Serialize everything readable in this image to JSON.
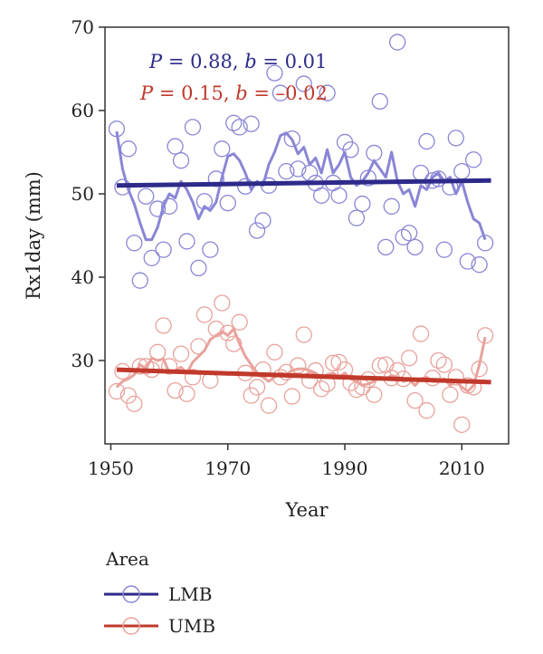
{
  "chart_data": {
    "type": "scatter",
    "xlabel": "Year",
    "ylabel": "Rx1day (mm)",
    "xlim": [
      1949,
      2018
    ],
    "ylim": [
      20,
      70
    ],
    "xticks": [
      1950,
      1970,
      1990,
      2010
    ],
    "yticks": [
      30,
      40,
      50,
      60,
      70
    ],
    "grid": false,
    "legend": {
      "title": "Area",
      "position": "bottom-left"
    },
    "annotations": [
      {
        "text": "P = 0.88, b = 0.01",
        "color": "#2d2a8a"
      },
      {
        "text": "P = 0.15, b = –0.02",
        "color": "#c0392b"
      }
    ],
    "series": [
      {
        "name": "LMB",
        "color": "#2d2a8a",
        "point_color": "#8a86d6",
        "points": [
          [
            1951,
            57.8
          ],
          [
            1952,
            50.8
          ],
          [
            1953,
            55.4
          ],
          [
            1954,
            44.1
          ],
          [
            1955,
            39.6
          ],
          [
            1956,
            49.7
          ],
          [
            1957,
            42.3
          ],
          [
            1958,
            48.2
          ],
          [
            1959,
            43.3
          ],
          [
            1960,
            48.5
          ],
          [
            1961,
            55.7
          ],
          [
            1962,
            54.0
          ],
          [
            1963,
            44.3
          ],
          [
            1964,
            58.0
          ],
          [
            1965,
            41.1
          ],
          [
            1966,
            49.1
          ],
          [
            1967,
            43.3
          ],
          [
            1968,
            51.8
          ],
          [
            1969,
            55.4
          ],
          [
            1970,
            48.9
          ],
          [
            1971,
            58.5
          ],
          [
            1972,
            58.0
          ],
          [
            1973,
            50.9
          ],
          [
            1974,
            58.4
          ],
          [
            1975,
            45.6
          ],
          [
            1976,
            46.8
          ],
          [
            1977,
            51.0
          ],
          [
            1978,
            64.5
          ],
          [
            1979,
            62.1
          ],
          [
            1980,
            52.7
          ],
          [
            1981,
            56.6
          ],
          [
            1982,
            53.0
          ],
          [
            1983,
            63.2
          ],
          [
            1984,
            52.5
          ],
          [
            1985,
            51.3
          ],
          [
            1986,
            49.8
          ],
          [
            1987,
            62.1
          ],
          [
            1988,
            51.3
          ],
          [
            1989,
            49.8
          ],
          [
            1990,
            56.2
          ],
          [
            1991,
            55.3
          ],
          [
            1992,
            47.1
          ],
          [
            1993,
            48.8
          ],
          [
            1994,
            51.9
          ],
          [
            1995,
            54.9
          ],
          [
            1996,
            61.1
          ],
          [
            1997,
            43.6
          ],
          [
            1998,
            48.5
          ],
          [
            1999,
            68.2
          ],
          [
            2000,
            44.8
          ],
          [
            2001,
            45.3
          ],
          [
            2002,
            43.6
          ],
          [
            2003,
            52.5
          ],
          [
            2004,
            56.3
          ],
          [
            2005,
            51.6
          ],
          [
            2006,
            51.8
          ],
          [
            2007,
            43.3
          ],
          [
            2008,
            50.8
          ],
          [
            2009,
            56.7
          ],
          [
            2010,
            52.7
          ],
          [
            2011,
            41.9
          ],
          [
            2012,
            54.1
          ],
          [
            2013,
            41.5
          ],
          [
            2014,
            44.1
          ]
        ],
        "moving_average": [
          [
            1951,
            57.5
          ],
          [
            1952,
            53.0
          ],
          [
            1953,
            50.5
          ],
          [
            1954,
            48.8
          ],
          [
            1955,
            46.5
          ],
          [
            1956,
            44.5
          ],
          [
            1957,
            44.5
          ],
          [
            1958,
            46.0
          ],
          [
            1959,
            48.5
          ],
          [
            1960,
            50.0
          ],
          [
            1961,
            49.5
          ],
          [
            1962,
            51.5
          ],
          [
            1963,
            50.5
          ],
          [
            1964,
            49.0
          ],
          [
            1965,
            47.0
          ],
          [
            1966,
            48.5
          ],
          [
            1967,
            48.0
          ],
          [
            1968,
            49.0
          ],
          [
            1969,
            52.0
          ],
          [
            1970,
            54.5
          ],
          [
            1971,
            54.8
          ],
          [
            1972,
            54.0
          ],
          [
            1973,
            52.5
          ],
          [
            1974,
            50.5
          ],
          [
            1975,
            51.5
          ],
          [
            1976,
            51.0
          ],
          [
            1977,
            53.5
          ],
          [
            1978,
            55.0
          ],
          [
            1979,
            57.0
          ],
          [
            1980,
            57.3
          ],
          [
            1981,
            56.5
          ],
          [
            1982,
            54.8
          ],
          [
            1983,
            55.6
          ],
          [
            1984,
            53.5
          ],
          [
            1985,
            54.3
          ],
          [
            1986,
            52.5
          ],
          [
            1987,
            55.3
          ],
          [
            1988,
            52.5
          ],
          [
            1989,
            53.5
          ],
          [
            1990,
            55.0
          ],
          [
            1991,
            52.0
          ],
          [
            1992,
            51.0
          ],
          [
            1993,
            51.5
          ],
          [
            1994,
            52.5
          ],
          [
            1995,
            54.0
          ],
          [
            1996,
            53.0
          ],
          [
            1997,
            52.0
          ],
          [
            1998,
            55.0
          ],
          [
            1999,
            51.5
          ],
          [
            2000,
            50.0
          ],
          [
            2001,
            50.5
          ],
          [
            2002,
            48.5
          ],
          [
            2003,
            51.0
          ],
          [
            2004,
            50.5
          ],
          [
            2005,
            52.0
          ],
          [
            2006,
            52.5
          ],
          [
            2007,
            51.5
          ],
          [
            2008,
            52.0
          ],
          [
            2009,
            50.0
          ],
          [
            2010,
            51.5
          ],
          [
            2011,
            49.0
          ],
          [
            2012,
            47.0
          ],
          [
            2013,
            46.5
          ],
          [
            2014,
            44.5
          ]
        ],
        "trend": [
          [
            1951,
            51.0
          ],
          [
            2015,
            51.6
          ]
        ]
      },
      {
        "name": "UMB",
        "color": "#c0392b",
        "point_color": "#e9a29c",
        "points": [
          [
            1951,
            26.3
          ],
          [
            1952,
            28.7
          ],
          [
            1953,
            25.8
          ],
          [
            1954,
            24.8
          ],
          [
            1955,
            29.3
          ],
          [
            1956,
            29.3
          ],
          [
            1957,
            28.9
          ],
          [
            1958,
            31.0
          ],
          [
            1959,
            34.2
          ],
          [
            1960,
            29.3
          ],
          [
            1961,
            26.4
          ],
          [
            1962,
            30.8
          ],
          [
            1963,
            26.0
          ],
          [
            1964,
            28.0
          ],
          [
            1965,
            31.7
          ],
          [
            1966,
            35.5
          ],
          [
            1967,
            27.6
          ],
          [
            1968,
            33.8
          ],
          [
            1969,
            36.9
          ],
          [
            1970,
            33.3
          ],
          [
            1971,
            32.0
          ],
          [
            1972,
            34.6
          ],
          [
            1973,
            28.5
          ],
          [
            1974,
            25.8
          ],
          [
            1975,
            26.8
          ],
          [
            1976,
            28.9
          ],
          [
            1977,
            24.6
          ],
          [
            1978,
            31.0
          ],
          [
            1979,
            28.0
          ],
          [
            1980,
            28.6
          ],
          [
            1981,
            25.7
          ],
          [
            1982,
            29.4
          ],
          [
            1983,
            33.1
          ],
          [
            1984,
            27.6
          ],
          [
            1985,
            28.8
          ],
          [
            1986,
            26.6
          ],
          [
            1987,
            27.2
          ],
          [
            1988,
            29.7
          ],
          [
            1989,
            29.8
          ],
          [
            1990,
            28.9
          ],
          [
            1991,
            27.3
          ],
          [
            1992,
            26.5
          ],
          [
            1993,
            26.8
          ],
          [
            1994,
            27.7
          ],
          [
            1995,
            25.9
          ],
          [
            1996,
            29.4
          ],
          [
            1997,
            29.5
          ],
          [
            1998,
            27.9
          ],
          [
            1999,
            28.8
          ],
          [
            2000,
            27.8
          ],
          [
            2001,
            30.3
          ],
          [
            2002,
            25.2
          ],
          [
            2003,
            33.2
          ],
          [
            2004,
            24.0
          ],
          [
            2005,
            27.9
          ],
          [
            2006,
            30.0
          ],
          [
            2007,
            29.5
          ],
          [
            2008,
            25.9
          ],
          [
            2009,
            28.0
          ],
          [
            2010,
            22.3
          ],
          [
            2011,
            27.0
          ],
          [
            2012,
            26.8
          ],
          [
            2013,
            29.0
          ],
          [
            2014,
            33.0
          ]
        ],
        "moving_average": [
          [
            1951,
            26.8
          ],
          [
            1952,
            27.5
          ],
          [
            1953,
            27.8
          ],
          [
            1954,
            28.3
          ],
          [
            1955,
            29.5
          ],
          [
            1956,
            29.0
          ],
          [
            1957,
            30.3
          ],
          [
            1958,
            30.0
          ],
          [
            1959,
            30.2
          ],
          [
            1960,
            28.5
          ],
          [
            1961,
            28.8
          ],
          [
            1962,
            29.2
          ],
          [
            1963,
            28.5
          ],
          [
            1964,
            29.8
          ],
          [
            1965,
            30.5
          ],
          [
            1966,
            31.2
          ],
          [
            1967,
            32.5
          ],
          [
            1968,
            33.0
          ],
          [
            1969,
            33.5
          ],
          [
            1970,
            33.0
          ],
          [
            1971,
            33.8
          ],
          [
            1972,
            32.0
          ],
          [
            1973,
            30.5
          ],
          [
            1974,
            29.5
          ],
          [
            1975,
            28.5
          ],
          [
            1976,
            28.0
          ],
          [
            1977,
            27.5
          ],
          [
            1978,
            28.0
          ],
          [
            1979,
            28.5
          ],
          [
            1980,
            28.3
          ],
          [
            1981,
            28.8
          ],
          [
            1982,
            29.0
          ],
          [
            1983,
            29.0
          ],
          [
            1984,
            28.8
          ],
          [
            1985,
            28.5
          ],
          [
            1986,
            28.0
          ],
          [
            1987,
            28.3
          ],
          [
            1988,
            28.5
          ],
          [
            1989,
            28.0
          ],
          [
            1990,
            28.5
          ],
          [
            1991,
            27.8
          ],
          [
            1992,
            27.5
          ],
          [
            1993,
            27.0
          ],
          [
            1994,
            27.2
          ],
          [
            1995,
            27.5
          ],
          [
            1996,
            28.0
          ],
          [
            1997,
            27.8
          ],
          [
            1998,
            28.2
          ],
          [
            1999,
            28.0
          ],
          [
            2000,
            27.5
          ],
          [
            2001,
            27.7
          ],
          [
            2002,
            27.0
          ],
          [
            2003,
            27.8
          ],
          [
            2004,
            28.0
          ],
          [
            2005,
            27.5
          ],
          [
            2006,
            27.5
          ],
          [
            2007,
            27.8
          ],
          [
            2008,
            27.0
          ],
          [
            2009,
            27.5
          ],
          [
            2010,
            26.8
          ],
          [
            2011,
            26.3
          ],
          [
            2012,
            27.0
          ],
          [
            2013,
            29.5
          ],
          [
            2014,
            32.8
          ]
        ],
        "trend": [
          [
            1951,
            28.9
          ],
          [
            2015,
            27.4
          ]
        ]
      }
    ]
  }
}
